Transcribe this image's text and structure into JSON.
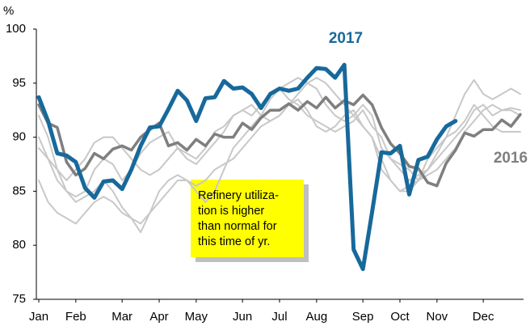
{
  "chart_data": {
    "type": "line",
    "y_label": "%",
    "categories": [
      "Jan",
      null,
      null,
      null,
      "Feb",
      null,
      null,
      null,
      null,
      "Mar",
      null,
      null,
      null,
      "Apr",
      null,
      null,
      null,
      "May",
      null,
      null,
      null,
      null,
      "Jun",
      null,
      null,
      null,
      "Jul",
      null,
      null,
      null,
      "Aug",
      null,
      null,
      null,
      null,
      "Sep",
      null,
      null,
      null,
      "Oct",
      null,
      null,
      null,
      "Nov",
      null,
      null,
      null,
      null,
      "Dec",
      null,
      null,
      null,
      null
    ],
    "ylim": [
      75,
      100
    ],
    "yticks": [
      75,
      80,
      85,
      90,
      95,
      100
    ],
    "series": [
      {
        "color": "#c8c8c8",
        "values": [
          89,
          88,
          86,
          85,
          84.5,
          85,
          87,
          88,
          87.5,
          86,
          87,
          88.5,
          89.5,
          90,
          90.5,
          89,
          88.5,
          88,
          89,
          90.5,
          91,
          92,
          92.5,
          93,
          92,
          93.5,
          94.5,
          95,
          95.5,
          95,
          94.5,
          93,
          92,
          91.5,
          92,
          93,
          92,
          89,
          88,
          87,
          86,
          86.5,
          87,
          88.5,
          90,
          92,
          94,
          95.3,
          94,
          93.5,
          94,
          94.5,
          94
        ]
      },
      {
        "color": "#c8c8c8",
        "values": [
          86,
          84,
          83,
          82.5,
          82,
          83,
          84,
          84.5,
          84,
          83,
          82.5,
          82,
          83,
          84,
          85,
          86,
          86,
          85.5,
          86,
          87,
          87.5,
          88,
          89,
          90,
          91,
          91.5,
          92,
          93,
          93.5,
          92.5,
          91,
          90.5,
          91,
          92,
          92.5,
          91,
          90,
          88,
          86,
          85,
          85,
          86,
          87,
          88,
          89,
          90,
          91,
          92.5,
          93,
          92,
          92.5,
          92.5,
          92
        ]
      },
      {
        "color": "#c8c8c8",
        "values": [
          92,
          90,
          87,
          85,
          84,
          84.5,
          85,
          86,
          85,
          83.5,
          82.5,
          81.2,
          83,
          85,
          86,
          86.5,
          86,
          85,
          84,
          85,
          87,
          89,
          90,
          91,
          92,
          91.5,
          92,
          93,
          94,
          95,
          95.5,
          95,
          94,
          93,
          92,
          91,
          90,
          87,
          86,
          85,
          85.5,
          86,
          88,
          89,
          90,
          90.5,
          91.5,
          93,
          92,
          91,
          90.5,
          90.5,
          90.5
        ]
      },
      {
        "color": "#c8c8c8",
        "values": [
          90,
          88,
          87,
          86,
          87,
          88,
          89.5,
          90,
          90,
          89,
          88,
          87,
          86.5,
          87,
          88,
          89,
          88,
          87.5,
          88.5,
          89.5,
          90.5,
          92,
          92.5,
          92,
          93,
          94,
          94.5,
          93.5,
          93,
          92,
          91.5,
          91,
          90.5,
          91,
          91.5,
          92.5,
          91,
          90,
          88,
          87.5,
          87,
          86,
          86.5,
          87,
          88,
          89,
          90.5,
          91.5,
          92.5,
          93,
          92.5,
          92.7,
          92.5
        ]
      },
      {
        "name": "2016",
        "color": "#7f7f7f",
        "values": [
          93.0,
          91.3,
          90.9,
          87.7,
          86.5,
          87.1,
          88.5,
          88.0,
          88.9,
          89.2,
          88.8,
          90.0,
          90.7,
          91.3,
          89.2,
          89.5,
          88.8,
          89.8,
          89.2,
          90.3,
          90.0,
          90.0,
          91.3,
          90.7,
          91.8,
          92.5,
          92.5,
          93.1,
          92.5,
          93.3,
          92.7,
          93.7,
          92.7,
          93.4,
          93.0,
          93.9,
          93.0,
          90.9,
          89.4,
          88.5,
          87.3,
          87.1,
          85.8,
          85.5,
          87.6,
          88.8,
          90.4,
          90.1,
          90.7,
          90.7,
          91.6,
          91.0,
          92.1
        ]
      },
      {
        "name": "2017",
        "color": "#17699b",
        "values": [
          93.7,
          91.5,
          88.5,
          88.3,
          87.7,
          85.3,
          84.4,
          85.9,
          86.0,
          85.2,
          87.0,
          89.2,
          90.9,
          91.0,
          92.6,
          94.3,
          93.4,
          91.5,
          93.6,
          93.7,
          95.2,
          94.5,
          94.6,
          94.0,
          92.7,
          94.0,
          94.5,
          94.3,
          94.5,
          95.5,
          96.4,
          96.3,
          95.5,
          96.7,
          79.6,
          77.8,
          83.1,
          88.6,
          88.5,
          89.2,
          84.7,
          87.9,
          88.2,
          89.8,
          91.0,
          91.5,
          null,
          null,
          null,
          null,
          null,
          null,
          null
        ]
      }
    ],
    "annotation": [
      "Refinery utiliza-",
      "tion is higher",
      "than normal for",
      "this time of yr."
    ]
  }
}
